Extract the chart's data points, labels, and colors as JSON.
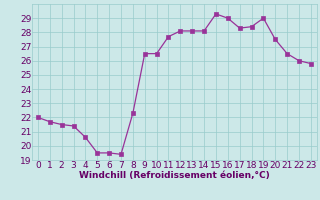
{
  "x": [
    0,
    1,
    2,
    3,
    4,
    5,
    6,
    7,
    8,
    9,
    10,
    11,
    12,
    13,
    14,
    15,
    16,
    17,
    18,
    19,
    20,
    21,
    22,
    23
  ],
  "y": [
    22.0,
    21.7,
    21.5,
    21.4,
    20.6,
    19.5,
    19.5,
    19.4,
    22.3,
    26.5,
    26.5,
    27.7,
    28.1,
    28.1,
    28.1,
    29.3,
    29.0,
    28.3,
    28.4,
    29.0,
    27.5,
    26.5,
    26.0,
    25.8
  ],
  "line_color": "#993399",
  "marker_color": "#993399",
  "bg_color": "#cce8e8",
  "grid_color": "#99cccc",
  "xlabel": "Windchill (Refroidissement éolien,°C)",
  "ylim": [
    19,
    30
  ],
  "xlim_min": -0.5,
  "xlim_max": 23.5,
  "yticks": [
    19,
    20,
    21,
    22,
    23,
    24,
    25,
    26,
    27,
    28,
    29
  ],
  "xticks": [
    0,
    1,
    2,
    3,
    4,
    5,
    6,
    7,
    8,
    9,
    10,
    11,
    12,
    13,
    14,
    15,
    16,
    17,
    18,
    19,
    20,
    21,
    22,
    23
  ],
  "tick_color": "#660066",
  "axis_label_color": "#660066",
  "font_size_tick": 6.5,
  "font_size_label": 6.5,
  "linewidth": 0.9,
  "markersize": 2.2
}
